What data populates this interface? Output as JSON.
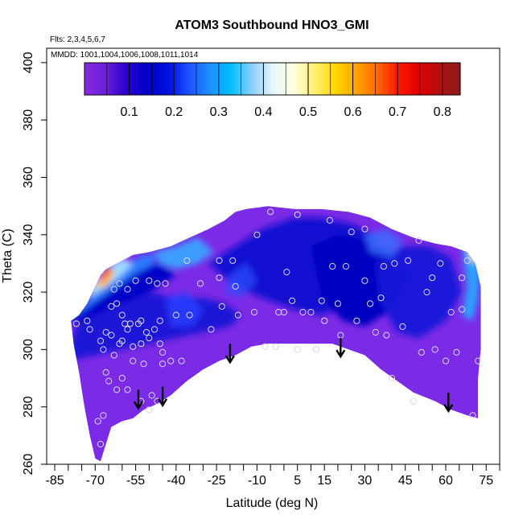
{
  "chart_data": {
    "type": "heatmap",
    "title": "ATOM3 Southbound HNO3_GMI",
    "flights_label": "Flts: 2,3,4,5,6,7",
    "dates_label": "MMDD: 1001,1004,1006,1008,1011,1014",
    "xlabel": "Latitude (deg N)",
    "ylabel": "Theta (C)",
    "xlim": [
      -88,
      80
    ],
    "ylim": [
      260,
      405
    ],
    "x_major_ticks": [
      -85,
      -70,
      -55,
      -40,
      -25,
      -10,
      5,
      15,
      30,
      45,
      60,
      75
    ],
    "x_minor_ticks": [
      -80,
      -75,
      -65,
      -60,
      -50,
      -45,
      -35,
      -30,
      -20,
      -15,
      -5,
      0,
      10,
      20,
      25,
      35,
      40,
      50,
      55,
      65,
      70,
      80
    ],
    "y_ticks": [
      260,
      280,
      300,
      320,
      340,
      360,
      380,
      400
    ],
    "colorbar": {
      "ticks": [
        0.1,
        0.2,
        0.3,
        0.4,
        0.5,
        0.6,
        0.7,
        0.8
      ],
      "range": [
        0.0,
        0.84
      ],
      "stops": [
        "#8a2be2",
        "#6a1fd8",
        "#2b00cc",
        "#0000c8",
        "#0010e0",
        "#1e50ff",
        "#1e90ff",
        "#00bfff",
        "#87cefa",
        "#e6f5ff",
        "#ffffe0",
        "#fff07a",
        "#ffd700",
        "#ffa500",
        "#ff6a00",
        "#ff1a00",
        "#e00000",
        "#b21010",
        "#8b1a1a"
      ]
    },
    "arrows_at": [
      {
        "lat": -54,
        "theta": 286
      },
      {
        "lat": -45,
        "theta": 287
      },
      {
        "lat": -20,
        "theta": 302
      },
      {
        "lat": 21,
        "theta": 304
      },
      {
        "lat": 61,
        "theta": 285
      }
    ],
    "sample_points": [
      [
        -77,
        309
      ],
      [
        -73,
        310
      ],
      [
        -72,
        307
      ],
      [
        -68,
        303
      ],
      [
        -67,
        300
      ],
      [
        -66,
        306
      ],
      [
        -64,
        305
      ],
      [
        -63,
        298
      ],
      [
        -61,
        302
      ],
      [
        -60,
        303
      ],
      [
        -59,
        309
      ],
      [
        -58,
        307
      ],
      [
        -57,
        309
      ],
      [
        -56,
        296
      ],
      [
        -56,
        301
      ],
      [
        -54,
        309
      ],
      [
        -53,
        302
      ],
      [
        -51,
        306
      ],
      [
        -50,
        304
      ],
      [
        -48,
        307
      ],
      [
        -46,
        310
      ],
      [
        -45,
        299
      ],
      [
        -46,
        302
      ],
      [
        -42,
        296
      ],
      [
        -38,
        296
      ],
      [
        -35,
        312
      ],
      [
        -31,
        323
      ],
      [
        -27,
        307
      ],
      [
        -24,
        331
      ],
      [
        -24,
        325
      ],
      [
        -23,
        315
      ],
      [
        -19,
        331
      ],
      [
        -18,
        322
      ],
      [
        -17,
        312
      ],
      [
        -11,
        313
      ],
      [
        -10,
        340
      ],
      [
        -7,
        301
      ],
      [
        -5,
        348
      ],
      [
        -3,
        301
      ],
      [
        -2,
        313
      ],
      [
        0,
        313
      ],
      [
        3,
        317
      ],
      [
        5,
        300
      ],
      [
        5,
        347
      ],
      [
        7,
        313
      ],
      [
        10,
        313
      ],
      [
        12,
        300
      ],
      [
        14,
        317
      ],
      [
        15,
        310
      ],
      [
        17,
        345
      ],
      [
        18,
        329
      ],
      [
        20,
        316
      ],
      [
        21,
        305
      ],
      [
        23,
        329
      ],
      [
        25,
        341
      ],
      [
        27,
        310
      ],
      [
        30,
        324
      ],
      [
        30,
        342
      ],
      [
        32,
        316
      ],
      [
        34,
        306
      ],
      [
        36,
        318
      ],
      [
        37,
        329
      ],
      [
        38,
        305
      ],
      [
        40,
        290
      ],
      [
        41,
        330
      ],
      [
        44,
        308
      ],
      [
        46,
        331
      ],
      [
        48,
        282
      ],
      [
        50,
        338
      ],
      [
        51,
        299
      ],
      [
        53,
        320
      ],
      [
        55,
        325
      ],
      [
        56,
        300
      ],
      [
        58,
        330
      ],
      [
        60,
        296
      ],
      [
        62,
        313
      ],
      [
        64,
        299
      ],
      [
        66,
        314
      ],
      [
        66,
        325
      ],
      [
        68,
        331
      ],
      [
        70,
        277
      ],
      [
        72,
        296
      ],
      [
        -69,
        275
      ],
      [
        -68,
        267
      ],
      [
        -67,
        277
      ],
      [
        -65,
        289
      ],
      [
        -66,
        292
      ],
      [
        -62,
        286
      ],
      [
        -60,
        290
      ],
      [
        -58,
        286
      ],
      [
        -53,
        282
      ],
      [
        -52,
        295
      ],
      [
        -50,
        279
      ],
      [
        -49,
        284
      ],
      [
        -47,
        282
      ],
      [
        -64,
        315
      ],
      [
        -62,
        316
      ],
      [
        -63,
        321
      ],
      [
        -61,
        323
      ],
      [
        -58,
        321
      ],
      [
        -55,
        324
      ],
      [
        -50,
        324
      ],
      [
        -47,
        323
      ],
      [
        -44,
        323
      ],
      [
        -40,
        312
      ],
      [
        -36,
        331
      ],
      [
        1,
        327
      ],
      [
        -60,
        312
      ],
      [
        -53,
        310
      ],
      [
        -45,
        295
      ]
    ]
  }
}
